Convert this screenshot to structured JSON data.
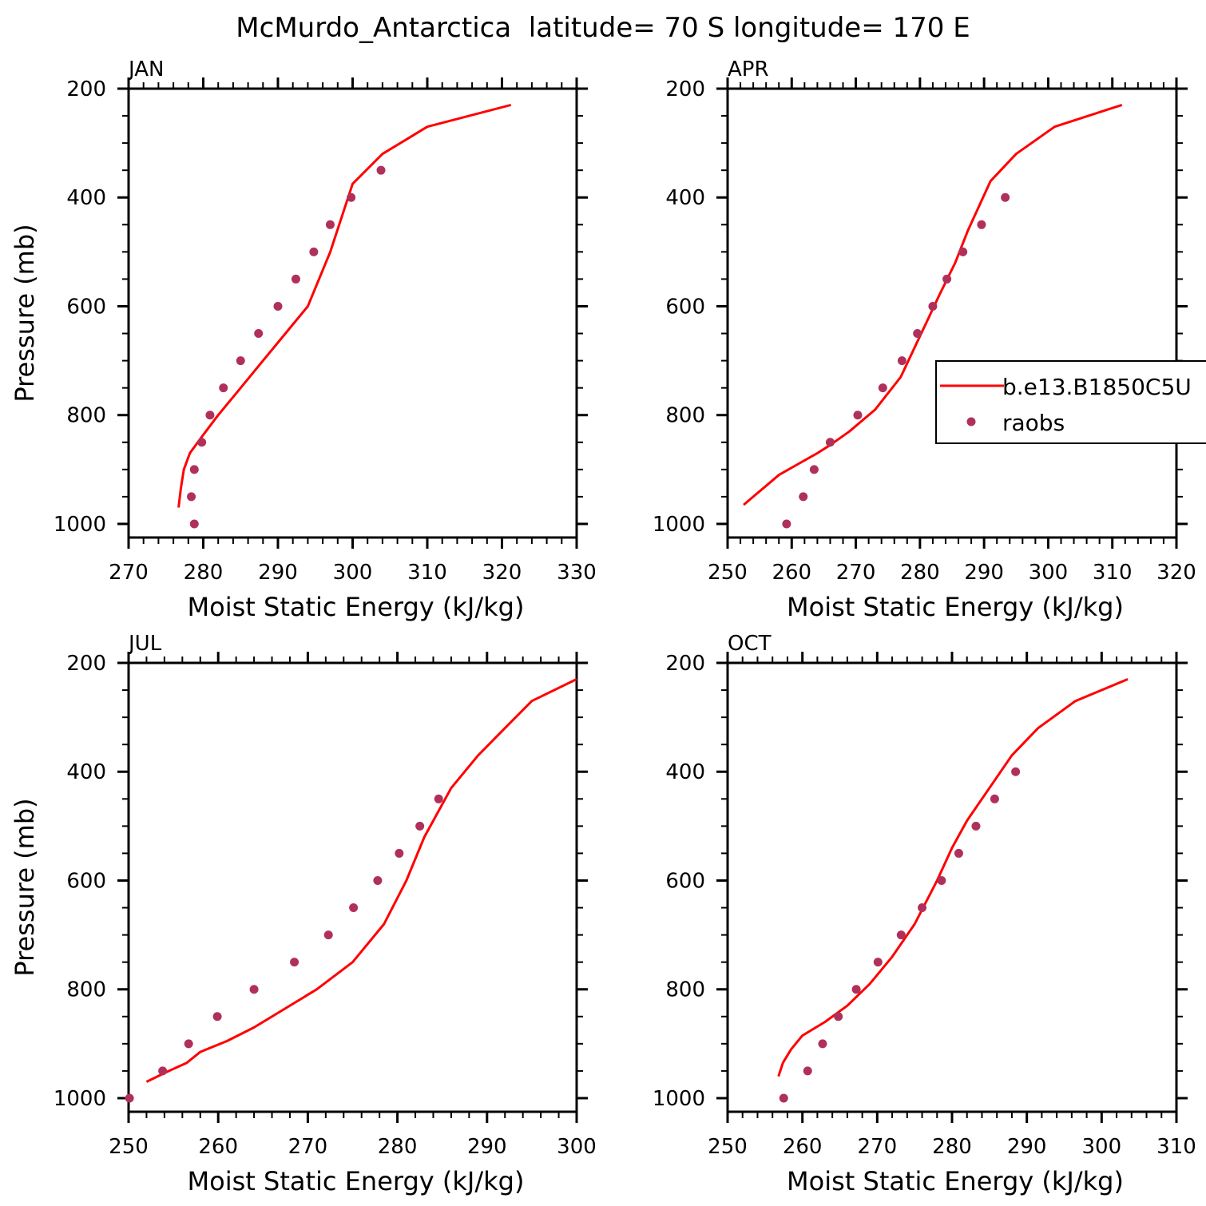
{
  "title": "McMurdo_Antarctica  latitude= 70 S longitude= 170 E",
  "colors": {
    "model": "#ff0000",
    "obs": "#b0305c",
    "axis": "#000000"
  },
  "legend": {
    "model_label": "b.e13.B1850C5U",
    "obs_label": "raobs"
  },
  "chart_data": [
    {
      "type": "line",
      "panel": "JAN",
      "xlabel": "Moist Static Energy (kJ/kg)",
      "ylabel": "Pressure (mb)",
      "xlim": [
        270,
        330
      ],
      "xticks": [
        270,
        280,
        290,
        300,
        310,
        320,
        330
      ],
      "ylim": [
        1025,
        200
      ],
      "yticks": [
        200,
        400,
        600,
        800,
        1000
      ],
      "series": [
        {
          "name": "b.e13.B1850C5U",
          "kind": "line",
          "x": [
            276.7,
            277.0,
            277.4,
            278.2,
            279.8,
            282.0,
            285.0,
            288.0,
            291.0,
            294.0,
            297.0,
            300.0,
            304.0,
            310.0,
            321.2
          ],
          "y": [
            970,
            935,
            900,
            870,
            840,
            800,
            750,
            700,
            650,
            600,
            500,
            375,
            320,
            270,
            230
          ]
        },
        {
          "name": "raobs",
          "kind": "scatter",
          "x": [
            278.8,
            278.4,
            278.8,
            279.8,
            280.9,
            282.7,
            285.0,
            287.4,
            290.0,
            292.4,
            294.8,
            297.0,
            299.8,
            303.8
          ],
          "y": [
            1000,
            950,
            900,
            850,
            800,
            750,
            700,
            650,
            600,
            550,
            500,
            450,
            400,
            350
          ]
        }
      ]
    },
    {
      "type": "line",
      "panel": "APR",
      "xlabel": "Moist Static Energy (kJ/kg)",
      "ylabel": "",
      "xlim": [
        250,
        320
      ],
      "xticks": [
        250,
        260,
        270,
        280,
        290,
        300,
        310,
        320
      ],
      "ylim": [
        1025,
        200
      ],
      "yticks": [
        200,
        400,
        600,
        800,
        1000
      ],
      "series": [
        {
          "name": "b.e13.B1850C5U",
          "kind": "line",
          "x": [
            252.5,
            254.0,
            256.0,
            258.0,
            261.0,
            264.0,
            266.0,
            269.0,
            273.0,
            277.0,
            279.0,
            281.0,
            283.0,
            285.5,
            287.5,
            291.0,
            295.0,
            301.0,
            311.5
          ],
          "y": [
            965,
            950,
            930,
            910,
            890,
            870,
            855,
            830,
            790,
            730,
            680,
            630,
            580,
            520,
            460,
            370,
            320,
            270,
            230
          ]
        },
        {
          "name": "raobs",
          "kind": "scatter",
          "x": [
            259.2,
            261.8,
            263.5,
            266.0,
            270.3,
            274.2,
            277.2,
            279.6,
            282.0,
            284.2,
            286.7,
            289.6,
            293.3
          ],
          "y": [
            1000,
            950,
            900,
            850,
            800,
            750,
            700,
            650,
            600,
            550,
            500,
            450,
            400
          ]
        }
      ]
    },
    {
      "type": "line",
      "panel": "JUL",
      "xlabel": "Moist Static Energy (kJ/kg)",
      "ylabel": "Pressure (mb)",
      "xlim": [
        250,
        300
      ],
      "xticks": [
        250,
        260,
        270,
        280,
        290,
        300
      ],
      "ylim": [
        1025,
        200
      ],
      "yticks": [
        200,
        400,
        600,
        800,
        1000
      ],
      "series": [
        {
          "name": "b.e13.B1850C5U",
          "kind": "line",
          "x": [
            252.0,
            254.5,
            256.5,
            258.0,
            261.0,
            264.0,
            267.0,
            271.0,
            275.0,
            278.5,
            281.0,
            283.0,
            286.0,
            289.0,
            292.0,
            295.0,
            300.0
          ],
          "y": [
            970,
            950,
            935,
            915,
            895,
            870,
            840,
            800,
            750,
            680,
            600,
            520,
            430,
            370,
            320,
            270,
            230
          ]
        },
        {
          "name": "raobs",
          "kind": "scatter",
          "x": [
            250.1,
            253.8,
            256.7,
            259.9,
            264.0,
            268.5,
            272.3,
            275.1,
            277.8,
            280.2,
            282.5,
            284.6
          ],
          "y": [
            1000,
            950,
            900,
            850,
            800,
            750,
            700,
            650,
            600,
            550,
            500,
            450
          ]
        }
      ]
    },
    {
      "type": "line",
      "panel": "OCT",
      "xlabel": "Moist Static Energy (kJ/kg)",
      "ylabel": "",
      "xlim": [
        250,
        310
      ],
      "xticks": [
        250,
        260,
        270,
        280,
        290,
        300,
        310
      ],
      "ylim": [
        1025,
        200
      ],
      "yticks": [
        200,
        400,
        600,
        800,
        1000
      ],
      "series": [
        {
          "name": "b.e13.B1850C5U",
          "kind": "line",
          "x": [
            256.8,
            257.4,
            258.5,
            260.0,
            263.0,
            266.0,
            269.0,
            272.0,
            275.0,
            278.0,
            280.0,
            282.0,
            285.0,
            288.0,
            291.5,
            296.5,
            303.5
          ],
          "y": [
            960,
            935,
            910,
            885,
            860,
            830,
            790,
            740,
            680,
            600,
            540,
            490,
            430,
            370,
            320,
            270,
            230
          ]
        },
        {
          "name": "raobs",
          "kind": "scatter",
          "x": [
            257.5,
            260.7,
            262.7,
            264.8,
            267.2,
            270.1,
            273.2,
            276.0,
            278.6,
            280.9,
            283.2,
            285.7,
            288.5
          ],
          "y": [
            1000,
            950,
            900,
            850,
            800,
            750,
            700,
            650,
            600,
            550,
            500,
            450,
            400
          ]
        }
      ]
    }
  ]
}
